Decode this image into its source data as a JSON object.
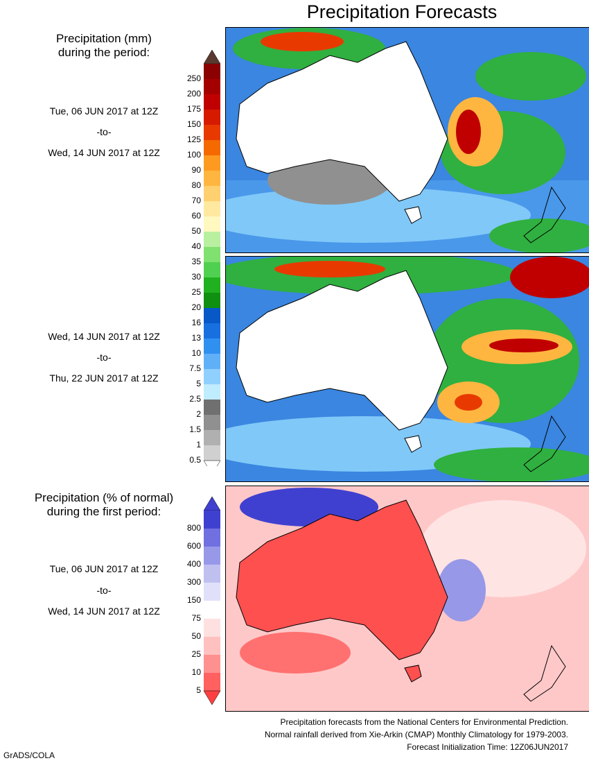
{
  "title": "Precipitation Forecasts",
  "legend_total": {
    "heading_line1": "Precipitation (mm)",
    "heading_line2": "during the period:",
    "levels": [
      "250",
      "200",
      "175",
      "150",
      "125",
      "100",
      "90",
      "80",
      "70",
      "60",
      "50",
      "40",
      "35",
      "30",
      "25",
      "20",
      "16",
      "13",
      "10",
      "7.5",
      "5",
      "2.5",
      "2",
      "1.5",
      "1",
      "0.5"
    ],
    "colors": [
      "#8b0000",
      "#a50000",
      "#c00000",
      "#d61a00",
      "#e83a00",
      "#f56a00",
      "#ff9a20",
      "#ffb640",
      "#ffd070",
      "#ffe8a0",
      "#fff8c0",
      "#b8f0a0",
      "#80e070",
      "#50d050",
      "#20b020",
      "#109010",
      "#0858c8",
      "#1870e0",
      "#3090f0",
      "#60b0f8",
      "#90d0ff",
      "#c0ecff",
      "#707070",
      "#909090",
      "#b0b0b0",
      "#d0d0d0"
    ],
    "top_arrow_color": "#5a3a30",
    "bottom_arrow_color": "#ffffff"
  },
  "periods": [
    {
      "start": "Tue, 06 JUN 2017 at 12Z",
      "sep": "-to-",
      "end": "Wed, 14 JUN 2017 at 12Z"
    },
    {
      "start": "Wed, 14 JUN 2017 at 12Z",
      "sep": "-to-",
      "end": "Thu, 22 JUN 2017 at 12Z"
    }
  ],
  "legend_pct": {
    "heading_line1": "Precipitation (% of normal)",
    "heading_line2": "during the first period:",
    "levels": [
      "800",
      "600",
      "400",
      "300",
      "150",
      "75",
      "50",
      "25",
      "10",
      "5"
    ],
    "colors": [
      "#4040d0",
      "#7070e0",
      "#9898e8",
      "#c0c0f0",
      "#e0e0fa",
      "#ffffff",
      "#ffe0e0",
      "#ffc0c0",
      "#ff9090",
      "#ff6060"
    ],
    "top_arrow_color": "#4040d0",
    "bottom_arrow_color": "#ff4040",
    "period": {
      "start": "Tue, 06 JUN 2017 at 12Z",
      "sep": "-to-",
      "end": "Wed, 14 JUN 2017 at 12Z"
    }
  },
  "footer": {
    "line1": "Precipitation forecasts from the National Centers for Environmental Prediction.",
    "line2": "Normal rainfall derived from Xie-Arkin (CMAP) Monthly Climatology for 1979-2003.",
    "line3": "Forecast Initialization Time: 12Z06JUN2017"
  },
  "credit": "GrADS/COLA"
}
